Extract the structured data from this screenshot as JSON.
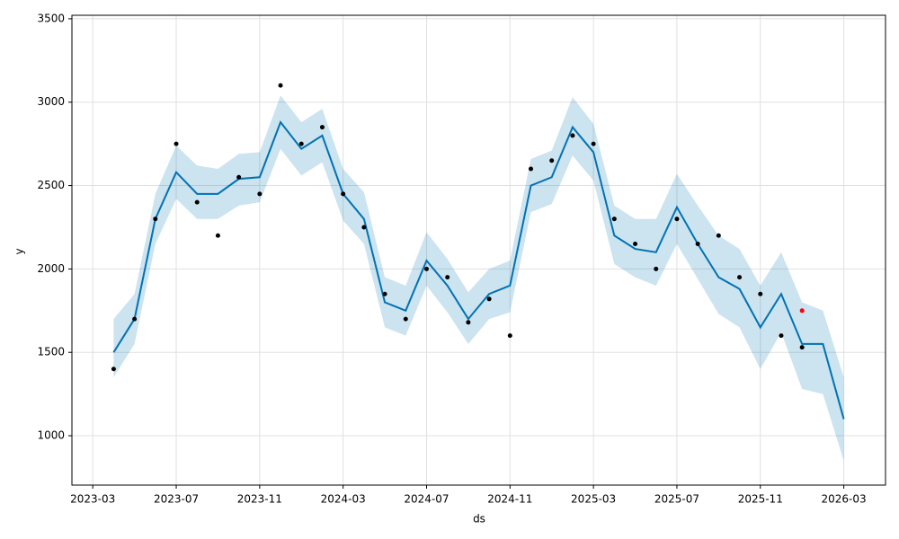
{
  "chart_data": {
    "type": "line",
    "xlabel": "ds",
    "ylabel": "y",
    "x": [
      "2023-04",
      "2023-05",
      "2023-06",
      "2023-07",
      "2023-08",
      "2023-09",
      "2023-10",
      "2023-11",
      "2023-12",
      "2024-01",
      "2024-02",
      "2024-03",
      "2024-04",
      "2024-05",
      "2024-06",
      "2024-07",
      "2024-08",
      "2024-09",
      "2024-10",
      "2024-11",
      "2024-12",
      "2025-01",
      "2025-02",
      "2025-03",
      "2025-04",
      "2025-05",
      "2025-06",
      "2025-07",
      "2025-08",
      "2025-09",
      "2025-10",
      "2025-11",
      "2025-12",
      "2026-01",
      "2026-02",
      "2026-03"
    ],
    "xlim": [
      "2023-02",
      "2026-05"
    ],
    "xticks": [
      "2023-03",
      "2023-07",
      "2023-11",
      "2024-03",
      "2024-07",
      "2024-11",
      "2025-03",
      "2025-07",
      "2025-11",
      "2026-03"
    ],
    "ylim": [
      704,
      3521
    ],
    "yticks": [
      1000,
      1500,
      2000,
      2500,
      3000,
      3500
    ],
    "grid": true,
    "series": [
      {
        "type": "band",
        "color": "#0072b2",
        "lower": [
          1350,
          1550,
          2150,
          2420,
          2300,
          2300,
          2380,
          2400,
          2720,
          2560,
          2640,
          2290,
          2150,
          1650,
          1600,
          1900,
          1740,
          1550,
          1700,
          1740,
          2340,
          2390,
          2680,
          2530,
          2030,
          1950,
          1900,
          2150,
          1940,
          1730,
          1650,
          1400,
          1620,
          1280,
          1250,
          850
        ],
        "upper": [
          1700,
          1850,
          2450,
          2740,
          2620,
          2600,
          2690,
          2700,
          3040,
          2880,
          2960,
          2600,
          2460,
          1950,
          1900,
          2220,
          2060,
          1860,
          2000,
          2050,
          2660,
          2710,
          3030,
          2870,
          2380,
          2300,
          2300,
          2570,
          2380,
          2200,
          2120,
          1900,
          2100,
          1800,
          1750,
          1350
        ]
      },
      {
        "type": "line",
        "color": "#0072b2",
        "values": [
          1500,
          1700,
          2300,
          2580,
          2450,
          2450,
          2540,
          2550,
          2880,
          2720,
          2800,
          2450,
          2300,
          1800,
          1750,
          2050,
          1900,
          1700,
          1850,
          1900,
          2500,
          2550,
          2850,
          2700,
          2200,
          2120,
          2100,
          2370,
          2150,
          1950,
          1880,
          1650,
          1850,
          1550,
          1550,
          1100
        ]
      },
      {
        "type": "scatter",
        "color": "#000000",
        "values": [
          1400,
          1700,
          2300,
          2750,
          2400,
          2200,
          2550,
          2450,
          3100,
          2750,
          2850,
          2450,
          2250,
          1850,
          1700,
          2000,
          1950,
          1680,
          1820,
          1600,
          2600,
          2650,
          2800,
          2750,
          2300,
          2150,
          2000,
          2300,
          2150,
          2200,
          1950,
          1850,
          1600,
          1530,
          null,
          null
        ]
      },
      {
        "type": "scatter",
        "color": "#ff0000",
        "values": [
          null,
          null,
          null,
          null,
          null,
          null,
          null,
          null,
          null,
          null,
          null,
          null,
          null,
          null,
          null,
          null,
          null,
          null,
          null,
          null,
          null,
          null,
          null,
          null,
          null,
          null,
          null,
          null,
          null,
          null,
          null,
          null,
          null,
          1750,
          null,
          null
        ]
      }
    ]
  }
}
